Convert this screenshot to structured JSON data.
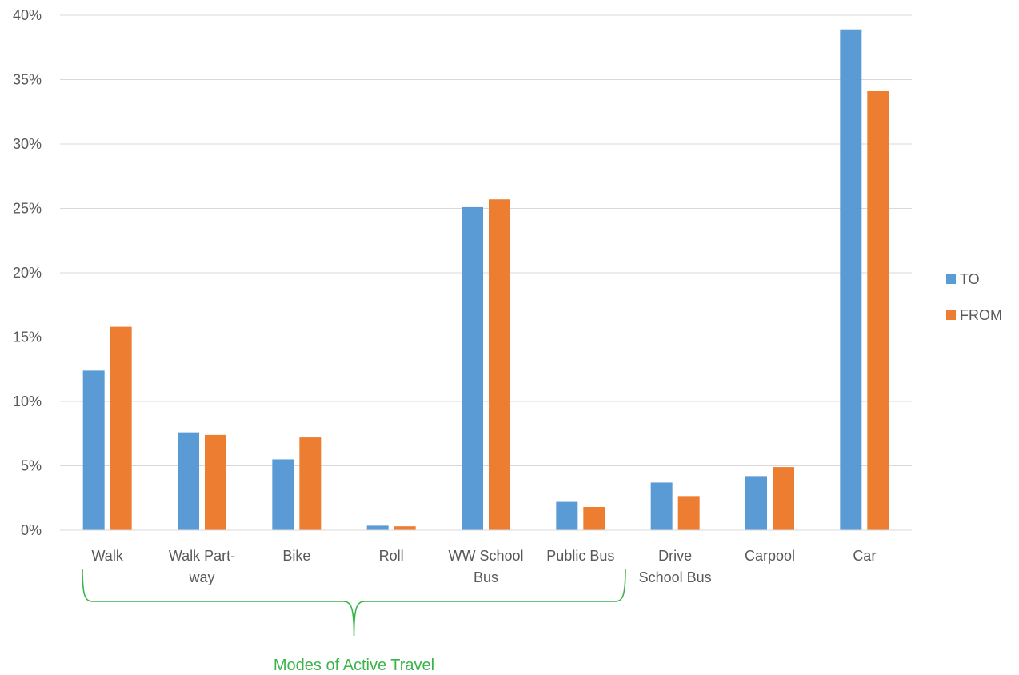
{
  "chart_data": {
    "type": "bar",
    "title": "",
    "xlabel": "",
    "ylabel": "",
    "ylim": [
      0,
      40
    ],
    "y_ticks": [
      "0%",
      "5%",
      "10%",
      "15%",
      "20%",
      "25%",
      "30%",
      "35%",
      "40%"
    ],
    "y_tick_values": [
      0,
      5,
      10,
      15,
      20,
      25,
      30,
      35,
      40
    ],
    "grid": true,
    "legend_position": "right",
    "categories": [
      [
        "Walk"
      ],
      [
        "Walk Part-",
        "way"
      ],
      [
        "Bike"
      ],
      [
        "Roll"
      ],
      [
        "WW School",
        "Bus"
      ],
      [
        "Public Bus"
      ],
      [
        "Drive",
        "School Bus"
      ],
      [
        "Carpool"
      ],
      [
        "Car"
      ]
    ],
    "series": [
      {
        "name": "TO",
        "color": "#5b9bd5",
        "values": [
          12.4,
          7.6,
          5.5,
          0.35,
          25.1,
          2.2,
          3.7,
          4.2,
          38.9
        ]
      },
      {
        "name": "FROM",
        "color": "#ed7d31",
        "values": [
          15.8,
          7.4,
          7.2,
          0.3,
          25.7,
          1.8,
          2.65,
          4.9,
          34.1
        ]
      }
    ],
    "annotation": {
      "text": "Modes of Active Travel",
      "color": "#3cb44b",
      "spans_categories": [
        0,
        5
      ]
    }
  }
}
